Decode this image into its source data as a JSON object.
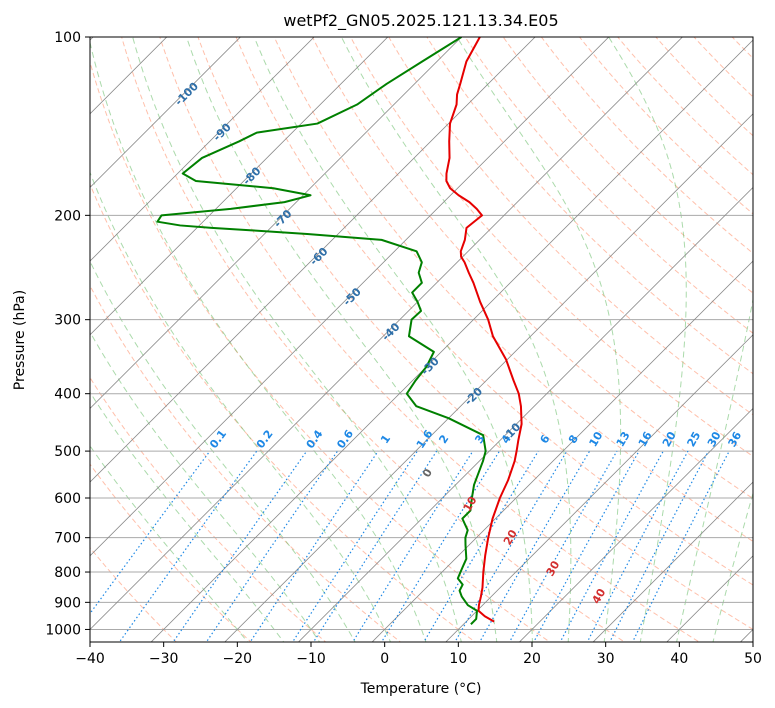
{
  "chart_data": {
    "type": "line",
    "title": "wetPf2_GN05.2025.121.13.34.E05",
    "xlabel": "Temperature (°C)",
    "ylabel": "Pressure (hPa)",
    "xlim": [
      -40,
      50
    ],
    "ylim": [
      1050,
      100
    ],
    "y_scale": "log",
    "skew": "skew-T",
    "grid": true,
    "x_ticks": [
      "−40",
      "−30",
      "−20",
      "−10",
      "0",
      "10",
      "20",
      "30",
      "40",
      "50"
    ],
    "y_ticks": [
      "100",
      "200",
      "300",
      "400",
      "500",
      "600",
      "700",
      "800",
      "900",
      "1000"
    ],
    "colors": {
      "temperature": "#e60000",
      "dewpoint": "#008000",
      "mixing_ratio": "#1e88e5",
      "dry_adiabat": "#ff8c66",
      "moist_adiabat": "#66bb66",
      "isotherm": "#888888",
      "isobar": "#aaaaaa"
    },
    "series": [
      {
        "key": "temperature",
        "pressure": [
          970,
          950,
          930,
          910,
          880,
          850,
          800,
          750,
          700,
          650,
          600,
          560,
          520,
          500,
          480,
          450,
          420,
          400,
          380,
          350,
          320,
          300,
          280,
          260,
          250,
          240,
          235,
          230,
          220,
          210,
          200,
          195,
          190,
          185,
          180,
          175,
          170,
          160,
          150,
          140,
          130,
          125,
          120,
          110,
          100
        ],
        "temp": [
          13.8,
          11.8,
          10.2,
          9.5,
          8.6,
          7.6,
          5.6,
          3.6,
          1.6,
          -0.4,
          -2.2,
          -3.5,
          -5.2,
          -6.3,
          -7.5,
          -9.3,
          -11.8,
          -13.8,
          -16.3,
          -20.2,
          -25.1,
          -28.0,
          -31.5,
          -35.0,
          -37.0,
          -39.0,
          -40.2,
          -41.0,
          -42.0,
          -43.4,
          -43.0,
          -44.6,
          -46.5,
          -48.9,
          -51.0,
          -52.5,
          -53.5,
          -55.2,
          -57.5,
          -59.8,
          -61.5,
          -62.8,
          -63.8,
          -66.0,
          -67.5
        ]
      },
      {
        "key": "dewpoint",
        "pressure": [
          980,
          960,
          930,
          910,
          880,
          860,
          840,
          820,
          800,
          780,
          760,
          720,
          700,
          680,
          650,
          630,
          600,
          570,
          520,
          500,
          470,
          440,
          420,
          400,
          380,
          360,
          340,
          320,
          300,
          290,
          280,
          270,
          260,
          250,
          240,
          230,
          220,
          215,
          212,
          210,
          208,
          205,
          200,
          195,
          190,
          185,
          180,
          175,
          170,
          160,
          150,
          145,
          140,
          130,
          120,
          110,
          100
        ],
        "temp": [
          11.0,
          11.0,
          10.0,
          8.0,
          6.0,
          4.9,
          4.5,
          3.0,
          2.5,
          2.0,
          1.5,
          -0.5,
          -1.5,
          -2.2,
          -4.5,
          -4.5,
          -6.0,
          -7.5,
          -9.5,
          -10.5,
          -13.0,
          -20.0,
          -26.0,
          -29.0,
          -29.6,
          -30.0,
          -31.0,
          -36.5,
          -38.4,
          -38.3,
          -40.0,
          -42.0,
          -42.0,
          -43.8,
          -44.8,
          -47.0,
          -53.3,
          -64.2,
          -72.2,
          -78.0,
          -82.6,
          -86.2,
          -86.5,
          -78.0,
          -71.6,
          -69.0,
          -75.0,
          -86.5,
          -89.3,
          -88.8,
          -86.0,
          -84.8,
          -77.8,
          -75.0,
          -73.8,
          -72.0,
          -70.0
        ]
      }
    ],
    "mixing_ratio_labels": [
      "0.1",
      "0.2",
      "0.4",
      "0.6",
      "1",
      "1.6",
      "2",
      "3",
      "4",
      "6",
      "8",
      "10",
      "13",
      "16",
      "20",
      "25",
      "30",
      "36"
    ],
    "mixing_ratio_values": [
      0.1,
      0.2,
      0.4,
      0.6,
      1,
      1.6,
      2,
      3,
      4,
      6,
      8,
      10,
      13,
      16,
      20,
      25,
      30,
      36
    ],
    "dry_adiabat_labels": [
      "-100",
      "-90",
      "-80",
      "-70",
      "-60",
      "-50",
      "-40",
      "-30",
      "-20",
      "-10"
    ],
    "moist_adiabat_labels": [
      "0",
      "10",
      "20",
      "30",
      "40"
    ]
  }
}
